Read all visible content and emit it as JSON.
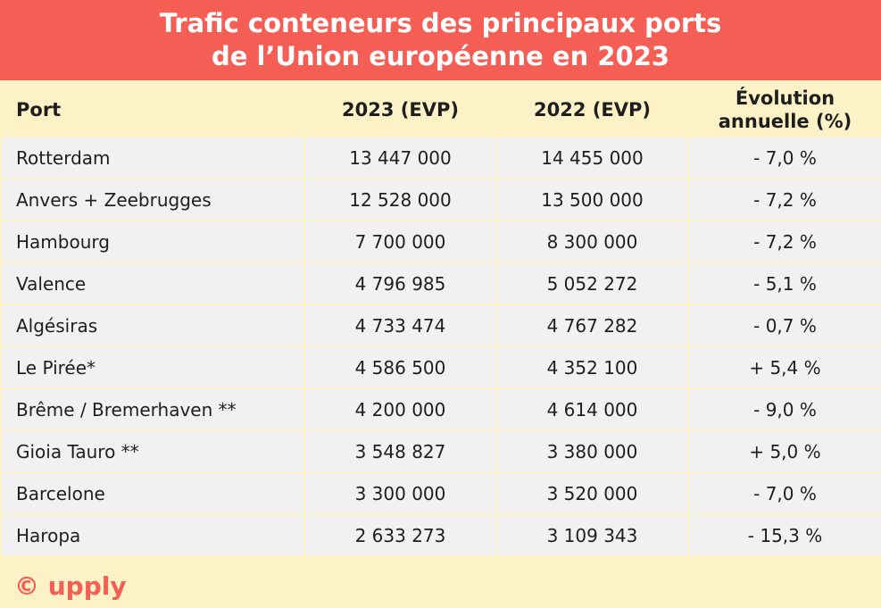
{
  "title": {
    "line1": "Trafic conteneurs des principaux ports",
    "line2": "de l’Union européenne en 2023"
  },
  "colors": {
    "title_bg": "#f45e55",
    "header_bg": "#fdf2c7",
    "row_bg": "#f1f1f1",
    "brand": "#f45e55"
  },
  "table": {
    "headers": {
      "port": "Port",
      "y2023": "2023 (EVP)",
      "y2022": "2022 (EVP)",
      "evolution_line1": "Évolution",
      "evolution_line2": "annuelle (%)"
    },
    "rows": [
      {
        "port": "Rotterdam",
        "y2023": "13 447 000",
        "y2022": "14 455 000",
        "evolution": "- 7,0 %"
      },
      {
        "port": "Anvers + Zeebrugges",
        "y2023": "12 528 000",
        "y2022": "13 500 000",
        "evolution": "- 7,2 %"
      },
      {
        "port": "Hambourg",
        "y2023": "7 700 000",
        "y2022": "8 300 000",
        "evolution": "- 7,2 %"
      },
      {
        "port": "Valence",
        "y2023": "4 796 985",
        "y2022": "5 052 272",
        "evolution": "- 5,1 %"
      },
      {
        "port": "Algésiras",
        "y2023": "4 733 474",
        "y2022": "4 767 282",
        "evolution": "- 0,7 %"
      },
      {
        "port": "Le Pirée*",
        "y2023": "4 586 500",
        "y2022": "4 352 100",
        "evolution": "+ 5,4 %"
      },
      {
        "port": "Brême / Bremerhaven **",
        "y2023": "4 200 000",
        "y2022": "4 614 000",
        "evolution": "- 9,0 %"
      },
      {
        "port": "Gioia Tauro **",
        "y2023": "3 548 827",
        "y2022": "3 380 000",
        "evolution": "+ 5,0 %"
      },
      {
        "port": "Barcelone",
        "y2023": "3 300 000",
        "y2022": "3 520 000",
        "evolution": "- 7,0 %"
      },
      {
        "port": "Haropa",
        "y2023": "2 633 273",
        "y2022": "3 109 343",
        "evolution": "- 15,3 %"
      }
    ]
  },
  "footer": {
    "logo": "© upply"
  },
  "chart_data": {
    "type": "table",
    "title": "Trafic conteneurs des principaux ports de l’Union européenne en 2023",
    "columns": [
      "Port",
      "2023 (EVP)",
      "2022 (EVP)",
      "Évolution annuelle (%)"
    ],
    "categories": [
      "Rotterdam",
      "Anvers + Zeebrugges",
      "Hambourg",
      "Valence",
      "Algésiras",
      "Le Pirée*",
      "Brême / Bremerhaven **",
      "Gioia Tauro **",
      "Barcelone",
      "Haropa"
    ],
    "series": [
      {
        "name": "2023 (EVP)",
        "values": [
          13447000,
          12528000,
          7700000,
          4796985,
          4733474,
          4586500,
          4200000,
          3548827,
          3300000,
          2633273
        ]
      },
      {
        "name": "2022 (EVP)",
        "values": [
          14455000,
          13500000,
          8300000,
          5052272,
          4767282,
          4352100,
          4614000,
          3380000,
          3520000,
          3109343
        ]
      },
      {
        "name": "Évolution annuelle (%)",
        "values": [
          -7.0,
          -7.2,
          -7.2,
          -5.1,
          -0.7,
          5.4,
          -9.0,
          5.0,
          -7.0,
          -15.3
        ]
      }
    ]
  }
}
